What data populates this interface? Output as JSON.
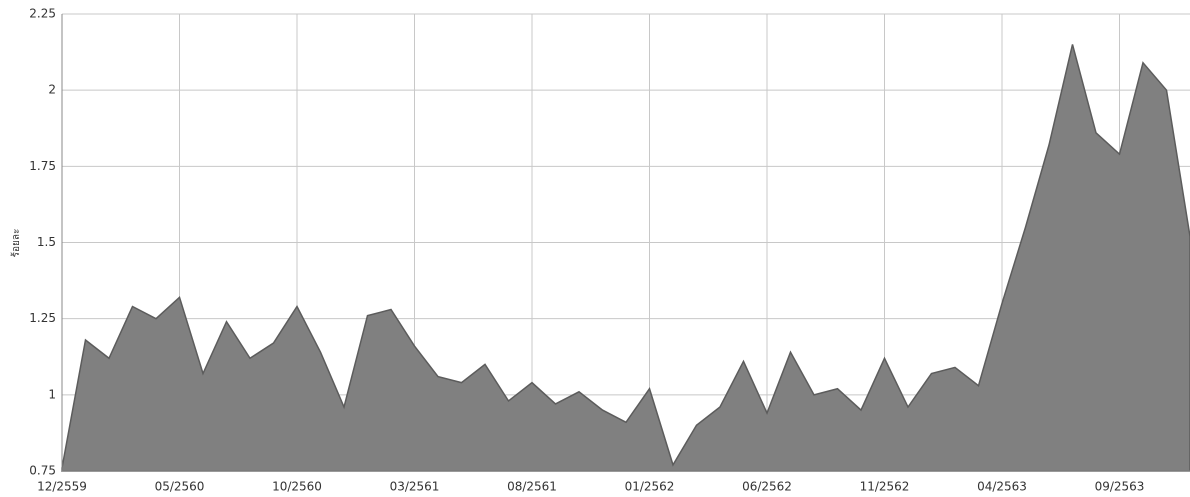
{
  "chart_data": {
    "type": "area",
    "y_label": "ร้อยละ",
    "categories": [
      "12/2559",
      null,
      null,
      null,
      null,
      "05/2560",
      null,
      null,
      null,
      null,
      "10/2560",
      null,
      null,
      null,
      null,
      "03/2561",
      null,
      null,
      null,
      null,
      "08/2561",
      null,
      null,
      null,
      null,
      "01/2562",
      null,
      null,
      null,
      null,
      "06/2562",
      null,
      null,
      null,
      null,
      "11/2562",
      null,
      null,
      null,
      null,
      "04/2563",
      null,
      null,
      null,
      null,
      "09/2563",
      null,
      null,
      null
    ],
    "values": [
      0.76,
      1.18,
      1.12,
      1.29,
      1.25,
      1.32,
      1.07,
      1.24,
      1.12,
      1.17,
      1.29,
      1.14,
      0.96,
      1.26,
      1.28,
      1.16,
      1.06,
      1.04,
      1.1,
      0.98,
      1.04,
      0.97,
      1.01,
      0.95,
      0.91,
      1.02,
      0.77,
      0.9,
      0.96,
      1.11,
      0.94,
      1.14,
      1.0,
      1.02,
      0.95,
      1.12,
      0.96,
      1.07,
      1.09,
      1.03,
      1.3,
      1.55,
      1.82,
      2.15,
      1.86,
      1.79,
      2.09,
      2.0,
      1.52
    ],
    "color": "#808080",
    "ylim": [
      0.75,
      2.25
    ],
    "yticks": [
      0.75,
      1,
      1.25,
      1.5,
      1.75,
      2,
      2.25
    ],
    "grid": true
  }
}
